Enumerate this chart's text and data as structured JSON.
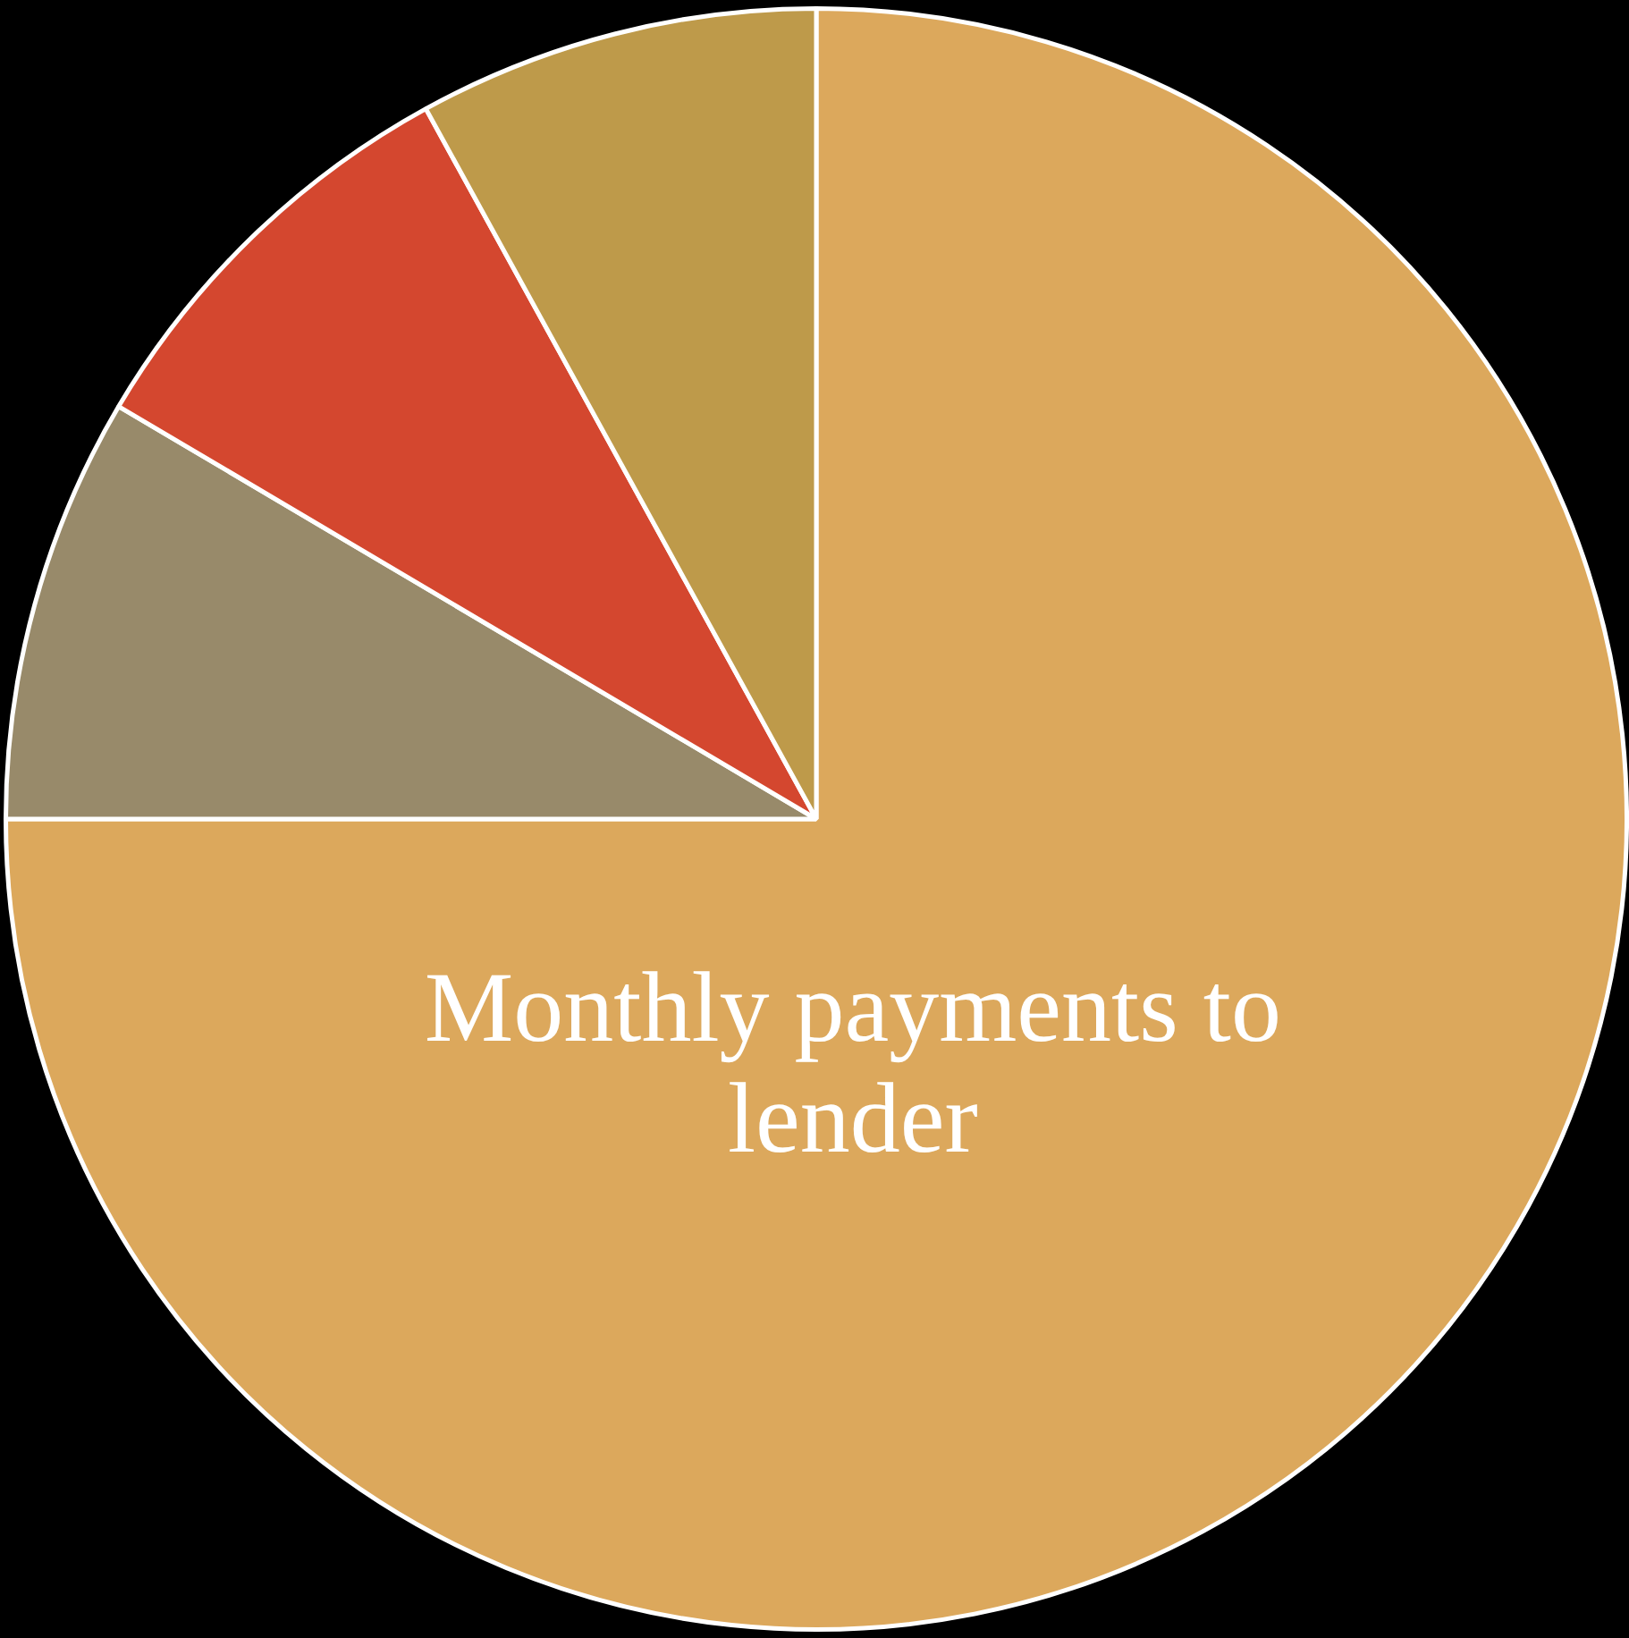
{
  "chart_data": {
    "type": "pie",
    "categories": [
      "Monthly payments to lender",
      null,
      null,
      null
    ],
    "values": [
      75,
      8.5,
      8.5,
      8
    ],
    "colors": [
      "#dca85c",
      "#988a6a",
      "#d4472f",
      "#be9a4a"
    ],
    "legend": false
  }
}
